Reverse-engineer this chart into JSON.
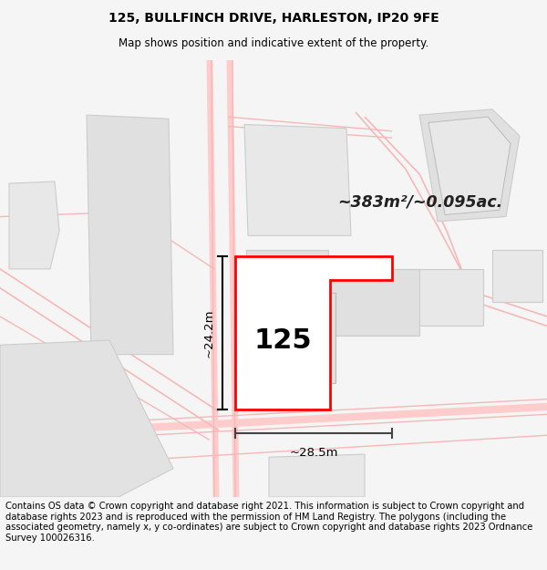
{
  "title": "125, BULLFINCH DRIVE, HARLESTON, IP20 9FE",
  "subtitle": "Map shows position and indicative extent of the property.",
  "footer": "Contains OS data © Crown copyright and database right 2021. This information is subject to Crown copyright and database rights 2023 and is reproduced with the permission of HM Land Registry. The polygons (including the associated geometry, namely x, y co-ordinates) are subject to Crown copyright and database rights 2023 Ordnance Survey 100026316.",
  "area_text": "~383m²/~0.095ac.",
  "house_number": "125",
  "dim_width": "~28.5m",
  "dim_height": "~24.2m",
  "bg_color": "#f5f5f5",
  "map_bg": "#ffffff",
  "title_fontsize": 10,
  "subtitle_fontsize": 8.5,
  "footer_fontsize": 7.2
}
